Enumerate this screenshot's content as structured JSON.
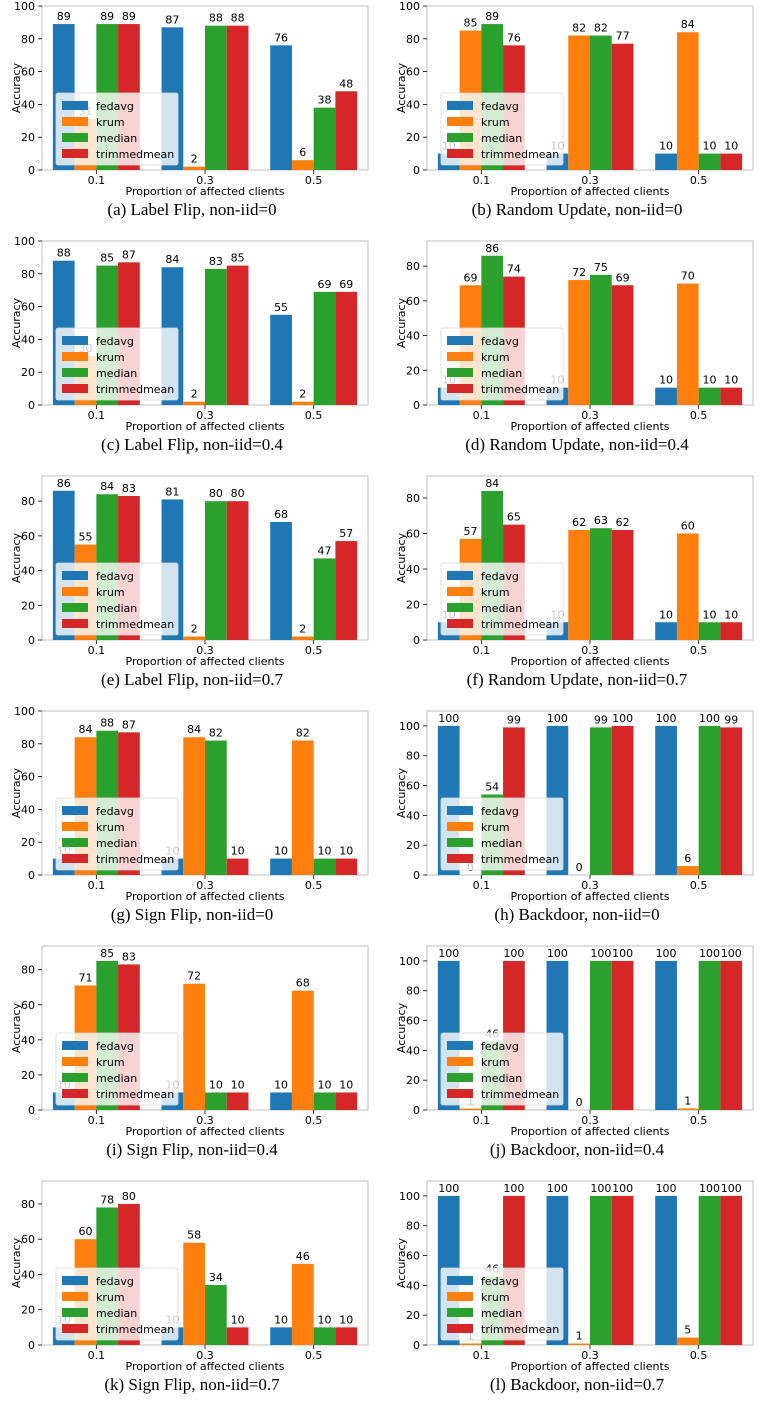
{
  "colors": {
    "fedavg": "#1f77b4",
    "krum": "#ff7f0e",
    "median": "#2ca02c",
    "trimmedmean": "#d62728"
  },
  "chart_data": [
    {
      "type": "bar",
      "caption": "(a) Label Flip, non-iid=0",
      "categories": [
        "0.1",
        "0.3",
        "0.5"
      ],
      "xlabel": "Proportion of affected clients",
      "ylabel": "Accuracy",
      "ylim": [
        0,
        100
      ],
      "yticks": [
        0,
        20,
        40,
        60,
        80,
        100
      ],
      "legend": "lower-left",
      "grid": false,
      "series": [
        {
          "name": "fedavg",
          "values": [
            89,
            87,
            76
          ]
        },
        {
          "name": "krum",
          "values": [
            31,
            2,
            6
          ]
        },
        {
          "name": "median",
          "values": [
            89,
            88,
            38
          ]
        },
        {
          "name": "trimmedmean",
          "values": [
            89,
            88,
            48
          ]
        }
      ]
    },
    {
      "type": "bar",
      "caption": "(b) Random Update, non-iid=0",
      "categories": [
        "0.1",
        "0.3",
        "0.5"
      ],
      "xlabel": "Proportion of affected clients",
      "ylabel": "Accuracy",
      "ylim": [
        0,
        100
      ],
      "yticks": [
        0,
        20,
        40,
        60,
        80,
        100
      ],
      "legend": "lower-left",
      "grid": false,
      "series": [
        {
          "name": "fedavg",
          "values": [
            10,
            10,
            10
          ]
        },
        {
          "name": "krum",
          "values": [
            85,
            82,
            84
          ]
        },
        {
          "name": "median",
          "values": [
            89,
            82,
            10
          ]
        },
        {
          "name": "trimmedmean",
          "values": [
            76,
            77,
            10
          ]
        }
      ]
    },
    {
      "type": "bar",
      "caption": "(c) Label Flip, non-iid=0.4",
      "categories": [
        "0.1",
        "0.3",
        "0.5"
      ],
      "xlabel": "Proportion of affected clients",
      "ylabel": "Accuracy",
      "ylim": [
        0,
        100
      ],
      "yticks": [
        0,
        20,
        40,
        60,
        80,
        100
      ],
      "legend": "lower-left",
      "grid": false,
      "series": [
        {
          "name": "fedavg",
          "values": [
            88,
            84,
            55
          ]
        },
        {
          "name": "krum",
          "values": [
            30,
            2,
            2
          ]
        },
        {
          "name": "median",
          "values": [
            85,
            83,
            69
          ]
        },
        {
          "name": "trimmedmean",
          "values": [
            87,
            85,
            69
          ]
        }
      ]
    },
    {
      "type": "bar",
      "caption": "(d) Random Update, non-iid=0.4",
      "categories": [
        "0.1",
        "0.3",
        "0.5"
      ],
      "xlabel": "Proportion of affected clients",
      "ylabel": "Accuracy",
      "ylim": [
        0,
        94.5
      ],
      "yticks": [
        0,
        20,
        40,
        60,
        80
      ],
      "legend": "lower-left",
      "grid": false,
      "series": [
        {
          "name": "fedavg",
          "values": [
            10,
            10,
            10
          ]
        },
        {
          "name": "krum",
          "values": [
            69,
            72,
            70
          ]
        },
        {
          "name": "median",
          "values": [
            86,
            75,
            10
          ]
        },
        {
          "name": "trimmedmean",
          "values": [
            74,
            69,
            10
          ]
        }
      ]
    },
    {
      "type": "bar",
      "caption": "(e) Label Flip, non-iid=0.7",
      "categories": [
        "0.1",
        "0.3",
        "0.5"
      ],
      "xlabel": "Proportion of affected clients",
      "ylabel": "Accuracy",
      "ylim": [
        0,
        94.5
      ],
      "yticks": [
        0,
        20,
        40,
        60,
        80
      ],
      "legend": "lower-left",
      "grid": false,
      "series": [
        {
          "name": "fedavg",
          "values": [
            86,
            81,
            68
          ]
        },
        {
          "name": "krum",
          "values": [
            55,
            2,
            2
          ]
        },
        {
          "name": "median",
          "values": [
            84,
            80,
            47
          ]
        },
        {
          "name": "trimmedmean",
          "values": [
            83,
            80,
            57
          ]
        }
      ]
    },
    {
      "type": "bar",
      "caption": "(f) Random Update, non-iid=0.7",
      "categories": [
        "0.1",
        "0.3",
        "0.5"
      ],
      "xlabel": "Proportion of affected clients",
      "ylabel": "Accuracy",
      "ylim": [
        0,
        92.4
      ],
      "yticks": [
        0,
        20,
        40,
        60,
        80
      ],
      "legend": "lower-left",
      "grid": false,
      "series": [
        {
          "name": "fedavg",
          "values": [
            10,
            10,
            10
          ]
        },
        {
          "name": "krum",
          "values": [
            57,
            62,
            60
          ]
        },
        {
          "name": "median",
          "values": [
            84,
            63,
            10
          ]
        },
        {
          "name": "trimmedmean",
          "values": [
            65,
            62,
            10
          ]
        }
      ]
    },
    {
      "type": "bar",
      "caption": "(g) Sign Flip, non-iid=0",
      "categories": [
        "0.1",
        "0.3",
        "0.5"
      ],
      "xlabel": "Proportion of affected clients",
      "ylabel": "Accuracy",
      "ylim": [
        0,
        100
      ],
      "yticks": [
        0,
        20,
        40,
        60,
        80,
        100
      ],
      "legend": "lower-left",
      "grid": false,
      "series": [
        {
          "name": "fedavg",
          "values": [
            10,
            10,
            10
          ]
        },
        {
          "name": "krum",
          "values": [
            84,
            84,
            82
          ]
        },
        {
          "name": "median",
          "values": [
            88,
            82,
            10
          ]
        },
        {
          "name": "trimmedmean",
          "values": [
            87,
            10,
            10
          ]
        }
      ]
    },
    {
      "type": "bar",
      "caption": "(h) Backdoor, non-iid=0",
      "categories": [
        "0.1",
        "0.3",
        "0.5"
      ],
      "xlabel": "Proportion of affected clients",
      "ylabel": "Accuracy",
      "ylim": [
        0,
        110
      ],
      "yticks": [
        0,
        20,
        40,
        60,
        80,
        100
      ],
      "legend": "lower-left",
      "grid": false,
      "series": [
        {
          "name": "fedavg",
          "values": [
            100,
            100,
            100
          ]
        },
        {
          "name": "krum",
          "values": [
            0,
            0,
            6
          ]
        },
        {
          "name": "median",
          "values": [
            54,
            99,
            100
          ]
        },
        {
          "name": "trimmedmean",
          "values": [
            99,
            100,
            99
          ]
        }
      ]
    },
    {
      "type": "bar",
      "caption": "(i) Sign Flip, non-iid=0.4",
      "categories": [
        "0.1",
        "0.3",
        "0.5"
      ],
      "xlabel": "Proportion of affected clients",
      "ylabel": "Accuracy",
      "ylim": [
        0,
        93.5
      ],
      "yticks": [
        0,
        20,
        40,
        60,
        80
      ],
      "legend": "lower-left",
      "grid": false,
      "series": [
        {
          "name": "fedavg",
          "values": [
            10,
            10,
            10
          ]
        },
        {
          "name": "krum",
          "values": [
            71,
            72,
            68
          ]
        },
        {
          "name": "median",
          "values": [
            85,
            10,
            10
          ]
        },
        {
          "name": "trimmedmean",
          "values": [
            83,
            10,
            10
          ]
        }
      ]
    },
    {
      "type": "bar",
      "caption": "(j) Backdoor, non-iid=0.4",
      "categories": [
        "0.1",
        "0.3",
        "0.5"
      ],
      "xlabel": "Proportion of affected clients",
      "ylabel": "Accuracy",
      "ylim": [
        0,
        110
      ],
      "yticks": [
        0,
        20,
        40,
        60,
        80,
        100
      ],
      "legend": "lower-left",
      "grid": false,
      "series": [
        {
          "name": "fedavg",
          "values": [
            100,
            100,
            100
          ]
        },
        {
          "name": "krum",
          "values": [
            1,
            0,
            1
          ]
        },
        {
          "name": "median",
          "values": [
            46,
            100,
            100
          ]
        },
        {
          "name": "trimmedmean",
          "values": [
            100,
            100,
            100
          ]
        }
      ]
    },
    {
      "type": "bar",
      "caption": "(k) Sign Flip, non-iid=0.7",
      "categories": [
        "0.1",
        "0.3",
        "0.5"
      ],
      "xlabel": "Proportion of affected clients",
      "ylabel": "Accuracy",
      "ylim": [
        0,
        93
      ],
      "yticks": [
        0,
        20,
        40,
        60,
        80
      ],
      "legend": "lower-left",
      "grid": false,
      "series": [
        {
          "name": "fedavg",
          "values": [
            10,
            10,
            10
          ]
        },
        {
          "name": "krum",
          "values": [
            60,
            58,
            46
          ]
        },
        {
          "name": "median",
          "values": [
            78,
            34,
            10
          ]
        },
        {
          "name": "trimmedmean",
          "values": [
            80,
            10,
            10
          ]
        }
      ]
    },
    {
      "type": "bar",
      "caption": "(l) Backdoor, non-iid=0.7",
      "categories": [
        "0.1",
        "0.3",
        "0.5"
      ],
      "xlabel": "Proportion of affected clients",
      "ylabel": "Accuracy",
      "ylim": [
        0,
        110
      ],
      "yticks": [
        0,
        20,
        40,
        60,
        80,
        100
      ],
      "legend": "lower-left",
      "grid": false,
      "series": [
        {
          "name": "fedavg",
          "values": [
            100,
            100,
            100
          ]
        },
        {
          "name": "krum",
          "values": [
            1,
            1,
            5
          ]
        },
        {
          "name": "median",
          "values": [
            46,
            100,
            100
          ]
        },
        {
          "name": "trimmedmean",
          "values": [
            100,
            100,
            100
          ]
        }
      ]
    }
  ]
}
